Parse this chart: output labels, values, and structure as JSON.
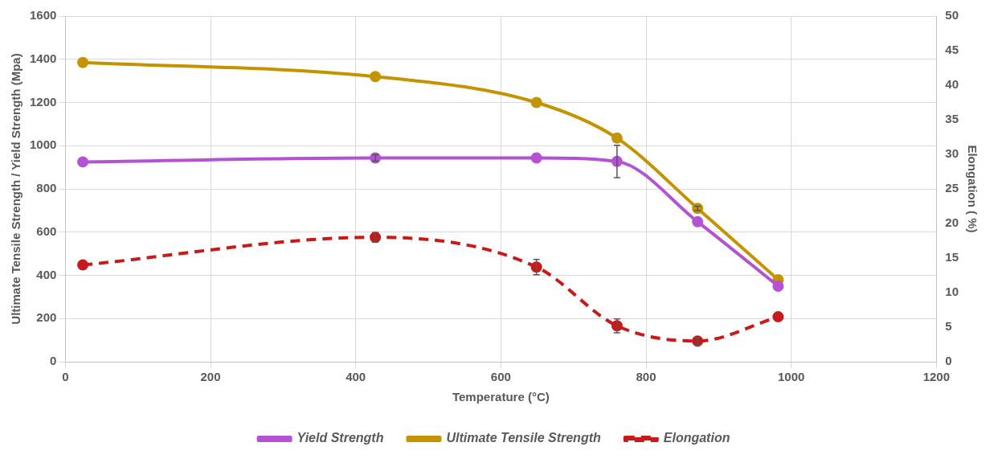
{
  "chart_data": {
    "type": "line",
    "xlabel": "Temperature (°C)",
    "ylabel": "Ultimate Tensile Strength / Yield Strength (Mpa)",
    "y2label": "Elongation ( %)",
    "x": [
      24,
      427,
      649,
      760,
      871,
      982
    ],
    "xlim": [
      0,
      1200
    ],
    "xticks": [
      0,
      200,
      400,
      600,
      800,
      1000,
      1200
    ],
    "ylim": [
      0,
      1600
    ],
    "yticks": [
      0,
      200,
      400,
      600,
      800,
      1000,
      1200,
      1400,
      1600
    ],
    "y2lim": [
      0,
      50
    ],
    "y2ticks": [
      0,
      5,
      10,
      15,
      20,
      25,
      30,
      35,
      40,
      45,
      50
    ],
    "grid": true,
    "legend": "bottom",
    "marker": "circle",
    "series": [
      {
        "name": "Yield Strength",
        "color": "#b452d4",
        "values": [
          925,
          943,
          943,
          927,
          648,
          350
        ],
        "errors": [
          null,
          15,
          null,
          75,
          null,
          null
        ],
        "line_style": "solid"
      },
      {
        "name": "Ultimate Tensile Strength",
        "color": "#c39300",
        "values": [
          1385,
          1320,
          1200,
          1035,
          710,
          380
        ],
        "errors": [
          null,
          null,
          null,
          null,
          10,
          null
        ],
        "line_style": "solid"
      },
      {
        "name": "Elongation",
        "color": "#c81a1a",
        "axis": "y2",
        "values": [
          14.0,
          18.0,
          13.7,
          5.2,
          3.0,
          6.5
        ],
        "errors": [
          null,
          0.7,
          1.1,
          1.0,
          0.5,
          null
        ],
        "line_style": "dashed"
      }
    ]
  }
}
